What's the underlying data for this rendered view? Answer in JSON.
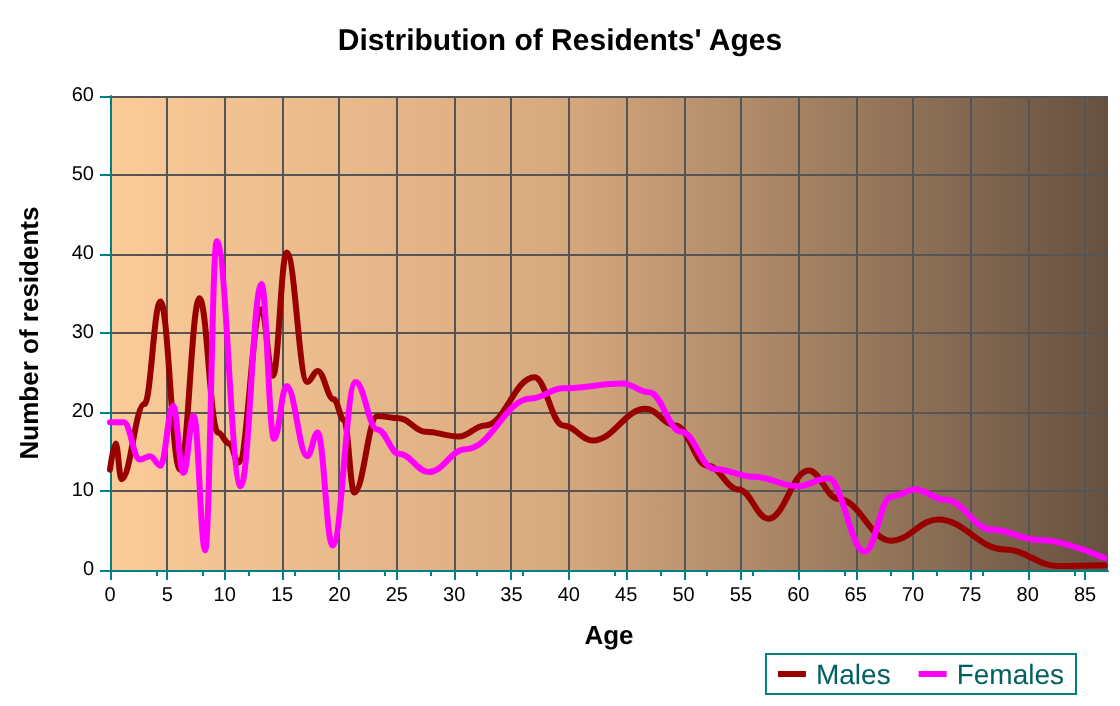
{
  "chart_data": {
    "type": "line",
    "title": "Distribution of Residents' Ages",
    "xlabel": "Age",
    "ylabel": "Number of residents",
    "xlim": [
      0,
      87
    ],
    "xticks": [
      0,
      5,
      10,
      15,
      20,
      25,
      30,
      35,
      40,
      45,
      50,
      55,
      60,
      65,
      70,
      75,
      80,
      85
    ],
    "ylim": [
      0,
      60
    ],
    "yticks": [
      0,
      10,
      20,
      30,
      40,
      50,
      60
    ],
    "grid": true,
    "legend": "bottom right",
    "marker": "none",
    "line_style": "solid",
    "series": [
      {
        "name": "Males",
        "color": "#990000",
        "x": [
          0,
          0.5,
          1,
          3,
          4.4,
          6.1,
          7.8,
          9.4,
          10.4,
          11.2,
          13.2,
          14.2,
          15.4,
          17.2,
          18.1,
          19.5,
          20.4,
          21.3,
          23.3,
          25.2,
          27.5,
          30.4,
          32.7,
          37,
          39.5,
          42.1,
          46.7,
          49.3,
          52.1,
          54.8,
          57.4,
          60.9,
          63.5,
          68.1,
          72.2,
          78,
          82.7,
          86.7
        ],
        "values": [
          12.7,
          16,
          11.5,
          21,
          34,
          12.7,
          34.4,
          17.4,
          16,
          13.6,
          33,
          24.6,
          40.2,
          23.8,
          25.2,
          21.6,
          19,
          9.8,
          19.5,
          19.2,
          17.5,
          16.9,
          18.3,
          24.4,
          18.3,
          16.4,
          20.4,
          18.3,
          13.2,
          10.2,
          6.5,
          12.6,
          9,
          3.7,
          6.4,
          2.6,
          0.5,
          0.6
        ]
      },
      {
        "name": "Females",
        "color": "#ff00ff",
        "x": [
          0,
          1.2,
          2.6,
          3.5,
          4.4,
          5.5,
          6.4,
          7.3,
          8.3,
          9.3,
          11.4,
          13.2,
          14.3,
          15.4,
          17.2,
          18.1,
          19.4,
          21.4,
          23.3,
          25.2,
          27.8,
          31,
          36.7,
          39.5,
          44.7,
          47,
          49.8,
          52.7,
          56.1,
          60,
          62.6,
          65.8,
          68.1,
          70.2,
          72.8,
          76.9,
          81,
          86.7
        ],
        "values": [
          18.7,
          18.7,
          14,
          14.4,
          13.2,
          20.8,
          12.3,
          19.5,
          2.5,
          41.6,
          10.6,
          36.2,
          16.6,
          23.3,
          14.4,
          17.4,
          3.1,
          23.8,
          17.8,
          14.7,
          12.4,
          15.3,
          21.7,
          23,
          23.6,
          22.5,
          17.5,
          12.8,
          11.8,
          10.6,
          11.6,
          2.3,
          9.3,
          10.2,
          8.9,
          5.1,
          3.8,
          1.5
        ]
      }
    ]
  }
}
